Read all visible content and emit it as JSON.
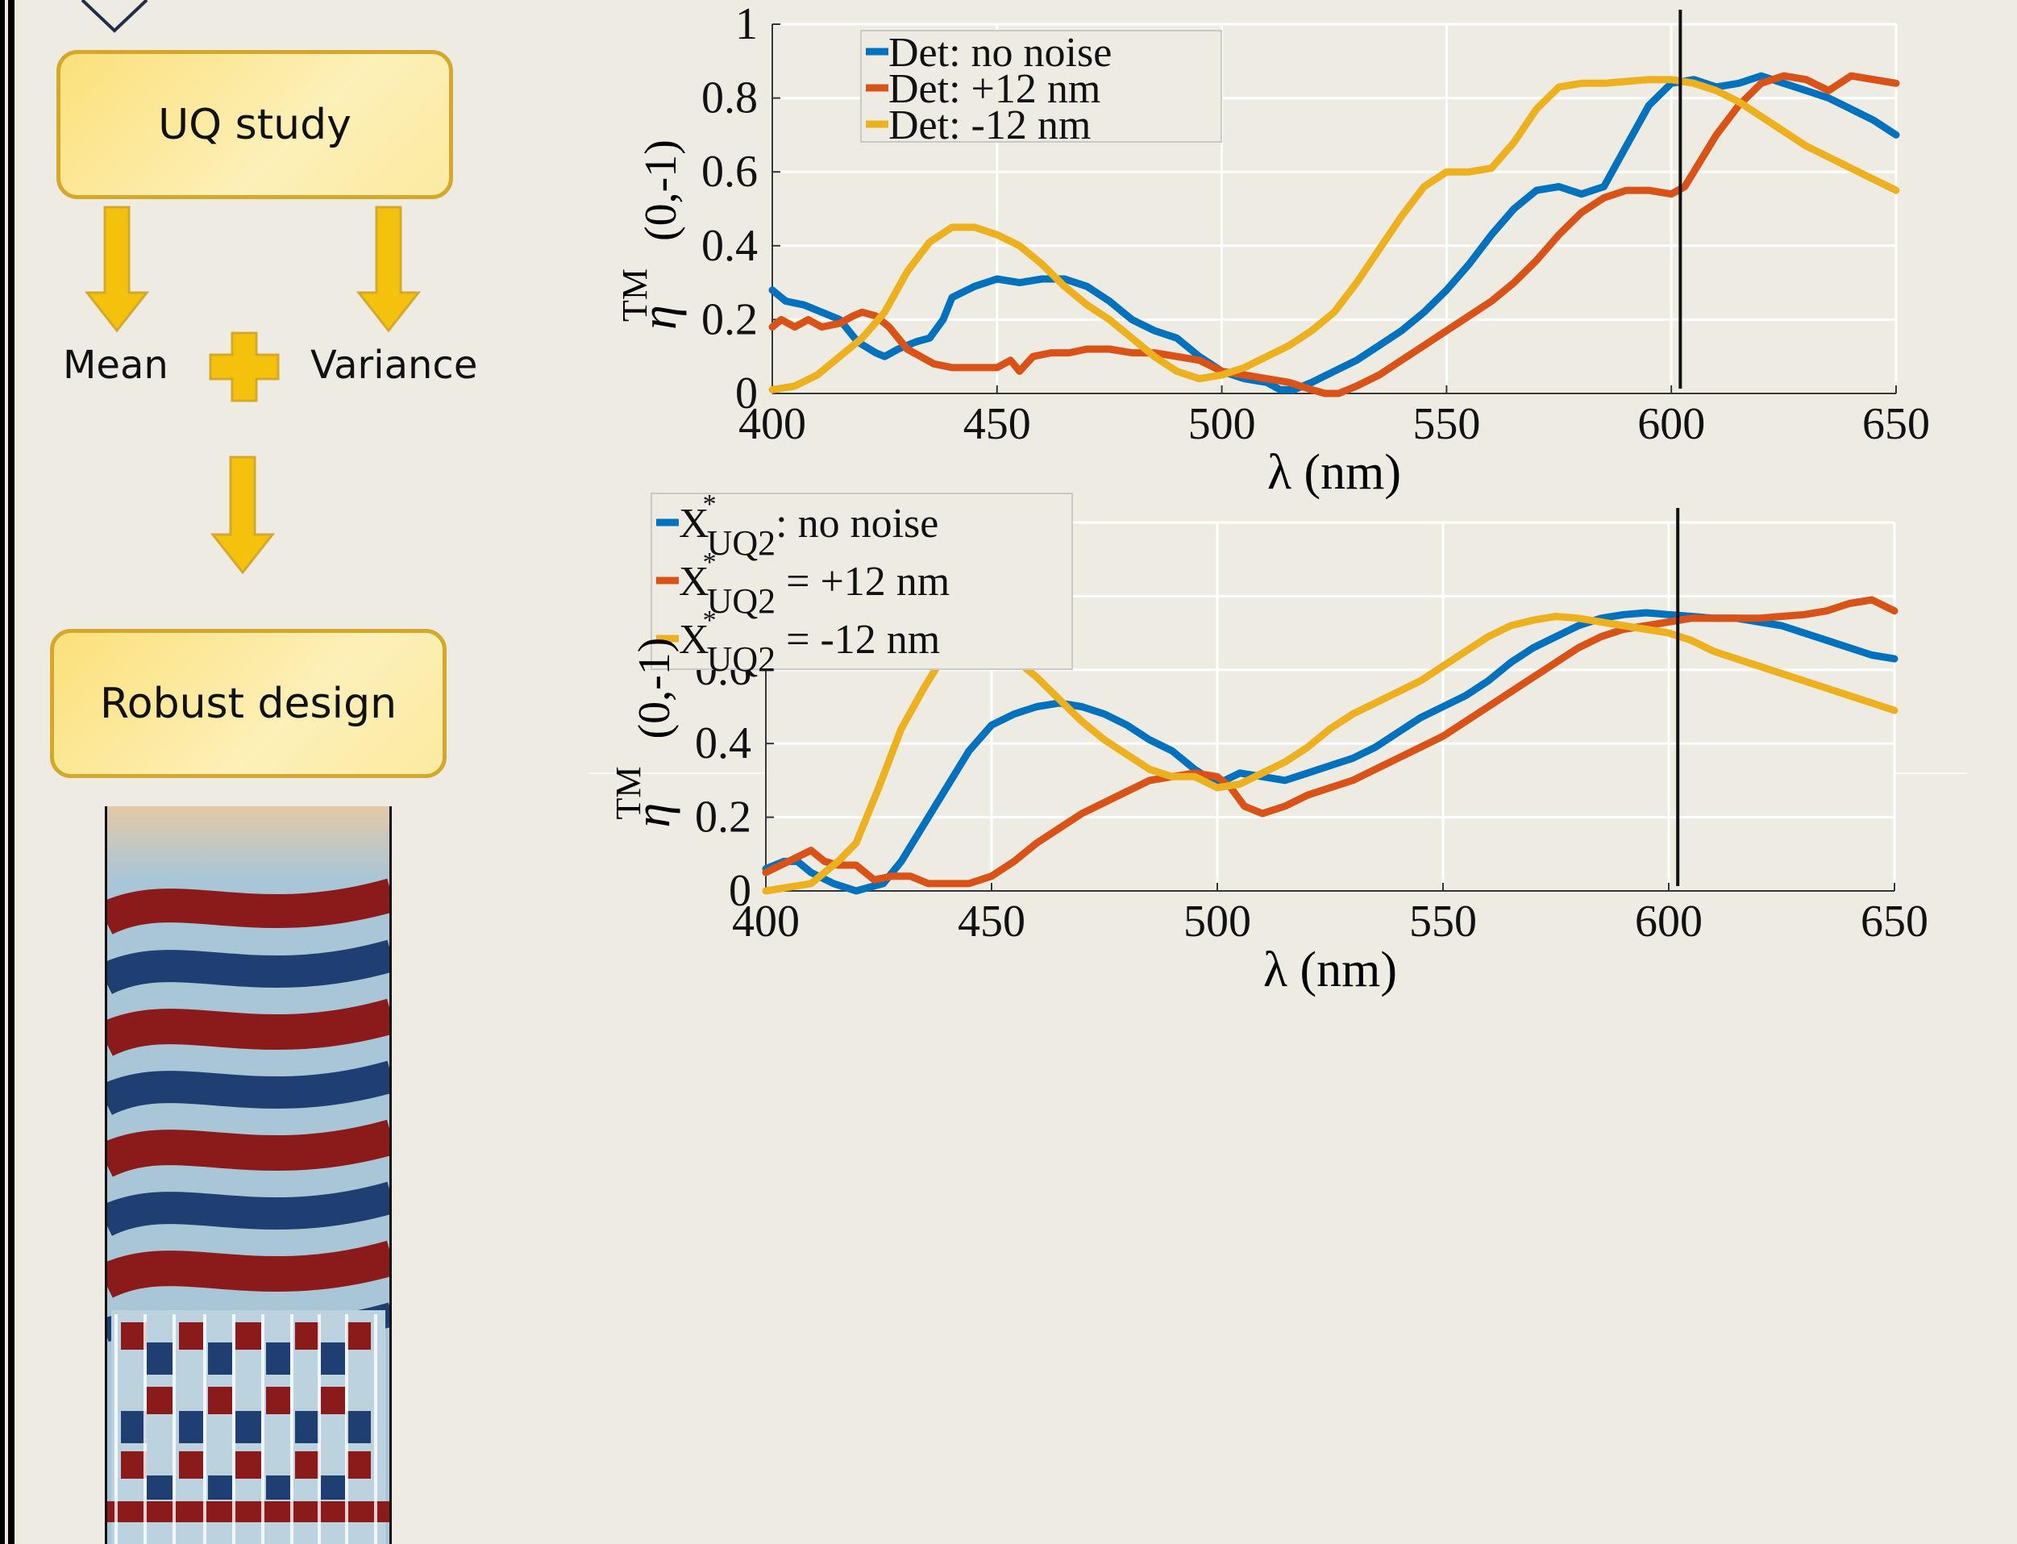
{
  "flow": {
    "uq_study": "UQ study",
    "mean": "Mean",
    "variance": "Variance",
    "robust_design": "Robust design"
  },
  "colors": {
    "blue": "#0072bd",
    "orange": "#d95319",
    "yellow": "#edb120",
    "box_fill": "#fde98c",
    "box_border": "#d4a82a",
    "arrow": "#f4c20d"
  },
  "chart_data": [
    {
      "type": "line",
      "title": "",
      "xlabel": "λ (nm)",
      "ylabel": "η TM (0,-1)",
      "ylabel_main": "η",
      "ylabel_sup": "TM",
      "ylabel_arg": "(0,-1)",
      "xlim": [
        400,
        650
      ],
      "ylim": [
        0,
        1
      ],
      "xticks": [
        "400",
        "450",
        "500",
        "550",
        "600",
        "650"
      ],
      "yticks": [
        "0",
        "0.2",
        "0.4",
        "0.6",
        "0.8",
        "1"
      ],
      "grid": true,
      "legend_position": "top-left",
      "vline": 602,
      "series": [
        {
          "name": "Det: no noise",
          "color": "#0072bd",
          "x": [
            400,
            403,
            407,
            411,
            415,
            419,
            423,
            425,
            428,
            432,
            435,
            438,
            440,
            445,
            450,
            455,
            460,
            465,
            470,
            475,
            480,
            485,
            490,
            495,
            500,
            505,
            510,
            513,
            516,
            520,
            525,
            530,
            535,
            540,
            545,
            550,
            555,
            560,
            565,
            570,
            575,
            580,
            585,
            590,
            595,
            600,
            605,
            610,
            615,
            620,
            625,
            630,
            635,
            640,
            645,
            650
          ],
          "y": [
            0.28,
            0.25,
            0.24,
            0.22,
            0.2,
            0.14,
            0.11,
            0.1,
            0.12,
            0.14,
            0.15,
            0.2,
            0.26,
            0.29,
            0.31,
            0.3,
            0.31,
            0.31,
            0.29,
            0.25,
            0.2,
            0.17,
            0.15,
            0.1,
            0.06,
            0.04,
            0.03,
            0.01,
            0.01,
            0.03,
            0.06,
            0.09,
            0.13,
            0.17,
            0.22,
            0.28,
            0.35,
            0.43,
            0.5,
            0.55,
            0.56,
            0.54,
            0.56,
            0.67,
            0.78,
            0.84,
            0.85,
            0.83,
            0.84,
            0.86,
            0.84,
            0.82,
            0.8,
            0.77,
            0.74,
            0.7
          ]
        },
        {
          "name": "Det: +12 nm",
          "color": "#d95319",
          "x": [
            400,
            402,
            405,
            408,
            411,
            415,
            418,
            420,
            423,
            426,
            430,
            433,
            436,
            440,
            445,
            450,
            453,
            455,
            458,
            462,
            466,
            470,
            475,
            480,
            485,
            490,
            495,
            500,
            505,
            510,
            515,
            520,
            523,
            526,
            530,
            535,
            540,
            545,
            550,
            555,
            560,
            565,
            570,
            575,
            580,
            585,
            590,
            595,
            600,
            603,
            606,
            610,
            615,
            620,
            625,
            630,
            635,
            640,
            645,
            650
          ],
          "y": [
            0.18,
            0.2,
            0.18,
            0.2,
            0.18,
            0.19,
            0.21,
            0.22,
            0.21,
            0.18,
            0.12,
            0.1,
            0.08,
            0.07,
            0.07,
            0.07,
            0.09,
            0.06,
            0.1,
            0.11,
            0.11,
            0.12,
            0.12,
            0.11,
            0.11,
            0.1,
            0.09,
            0.06,
            0.05,
            0.04,
            0.03,
            0.01,
            0.0,
            0.0,
            0.02,
            0.05,
            0.09,
            0.13,
            0.17,
            0.21,
            0.25,
            0.3,
            0.36,
            0.43,
            0.49,
            0.53,
            0.55,
            0.55,
            0.54,
            0.56,
            0.62,
            0.7,
            0.78,
            0.84,
            0.86,
            0.85,
            0.82,
            0.86,
            0.85,
            0.84
          ]
        },
        {
          "name": "Det: -12 nm",
          "color": "#edb120",
          "x": [
            400,
            405,
            410,
            415,
            420,
            425,
            430,
            435,
            440,
            445,
            450,
            455,
            460,
            465,
            470,
            475,
            480,
            485,
            490,
            495,
            500,
            505,
            510,
            515,
            520,
            525,
            530,
            535,
            540,
            545,
            550,
            555,
            560,
            565,
            570,
            575,
            580,
            585,
            590,
            595,
            600,
            605,
            610,
            615,
            620,
            625,
            630,
            635,
            640,
            645,
            650
          ],
          "y": [
            0.01,
            0.02,
            0.05,
            0.1,
            0.15,
            0.22,
            0.33,
            0.41,
            0.45,
            0.45,
            0.43,
            0.4,
            0.35,
            0.29,
            0.24,
            0.2,
            0.15,
            0.1,
            0.06,
            0.04,
            0.05,
            0.07,
            0.1,
            0.13,
            0.17,
            0.22,
            0.3,
            0.39,
            0.48,
            0.56,
            0.6,
            0.6,
            0.61,
            0.68,
            0.77,
            0.83,
            0.84,
            0.84,
            0.845,
            0.85,
            0.85,
            0.84,
            0.82,
            0.79,
            0.75,
            0.71,
            0.67,
            0.64,
            0.61,
            0.58,
            0.55
          ]
        }
      ]
    },
    {
      "type": "line",
      "title": "",
      "xlabel": "λ (nm)",
      "ylabel": "η TM (0,-1)",
      "ylabel_main": "η",
      "ylabel_sup": "TM",
      "ylabel_arg": "(0,-1)",
      "xlim": [
        400,
        650
      ],
      "ylim": [
        0,
        1
      ],
      "xticks": [
        "400",
        "450",
        "500",
        "550",
        "600",
        "650"
      ],
      "yticks": [
        "0",
        "0.2",
        "0.4",
        "0.6",
        "0.8",
        "1"
      ],
      "grid": true,
      "legend_position": "top-center",
      "vline": 602,
      "series": [
        {
          "name": "X*UQ2: no noise",
          "legend_prefix": "X",
          "legend_sup": "*",
          "legend_sub": "UQ2",
          "legend_suffix": ": no noise",
          "color": "#0072bd",
          "x": [
            400,
            404,
            407,
            410,
            415,
            420,
            423,
            426,
            430,
            435,
            440,
            445,
            450,
            455,
            460,
            465,
            470,
            475,
            480,
            485,
            490,
            495,
            500,
            505,
            510,
            515,
            520,
            525,
            530,
            535,
            540,
            545,
            550,
            555,
            560,
            565,
            570,
            575,
            580,
            585,
            590,
            595,
            600,
            605,
            610,
            615,
            620,
            625,
            630,
            635,
            640,
            645,
            650
          ],
          "y": [
            0.06,
            0.08,
            0.08,
            0.05,
            0.02,
            0.0,
            0.01,
            0.02,
            0.08,
            0.18,
            0.28,
            0.38,
            0.45,
            0.48,
            0.5,
            0.51,
            0.5,
            0.48,
            0.45,
            0.41,
            0.38,
            0.33,
            0.29,
            0.32,
            0.31,
            0.3,
            0.32,
            0.34,
            0.36,
            0.39,
            0.43,
            0.47,
            0.5,
            0.53,
            0.57,
            0.62,
            0.66,
            0.69,
            0.72,
            0.74,
            0.75,
            0.755,
            0.75,
            0.745,
            0.74,
            0.74,
            0.73,
            0.72,
            0.7,
            0.68,
            0.66,
            0.64,
            0.63
          ]
        },
        {
          "name": "X*UQ2 = +12 nm",
          "legend_prefix": "X",
          "legend_sup": "*",
          "legend_sub": "UQ2",
          "legend_suffix": " = +12 nm",
          "color": "#d95319",
          "x": [
            400,
            405,
            410,
            413,
            416,
            420,
            424,
            428,
            432,
            436,
            440,
            445,
            450,
            455,
            460,
            465,
            470,
            475,
            480,
            485,
            490,
            495,
            500,
            503,
            506,
            510,
            515,
            520,
            525,
            530,
            535,
            540,
            545,
            550,
            555,
            560,
            565,
            570,
            575,
            580,
            585,
            590,
            595,
            600,
            605,
            610,
            615,
            620,
            625,
            630,
            635,
            640,
            645,
            650
          ],
          "y": [
            0.05,
            0.08,
            0.11,
            0.08,
            0.07,
            0.07,
            0.03,
            0.04,
            0.04,
            0.02,
            0.02,
            0.02,
            0.04,
            0.08,
            0.13,
            0.17,
            0.21,
            0.24,
            0.27,
            0.3,
            0.31,
            0.32,
            0.31,
            0.28,
            0.23,
            0.21,
            0.23,
            0.26,
            0.28,
            0.3,
            0.33,
            0.36,
            0.39,
            0.42,
            0.46,
            0.5,
            0.54,
            0.58,
            0.62,
            0.66,
            0.69,
            0.71,
            0.72,
            0.73,
            0.74,
            0.74,
            0.74,
            0.74,
            0.745,
            0.75,
            0.76,
            0.78,
            0.79,
            0.76
          ]
        },
        {
          "name": "X*UQ2 = -12 nm",
          "legend_prefix": "X",
          "legend_sup": "*",
          "legend_sub": "UQ2",
          "legend_suffix": " = -12 nm",
          "color": "#edb120",
          "x": [
            400,
            405,
            410,
            413,
            416,
            420,
            425,
            430,
            435,
            440,
            445,
            450,
            455,
            460,
            465,
            470,
            475,
            480,
            485,
            490,
            495,
            500,
            505,
            510,
            515,
            520,
            525,
            530,
            535,
            540,
            545,
            550,
            555,
            560,
            565,
            570,
            575,
            580,
            585,
            590,
            595,
            600,
            605,
            610,
            615,
            620,
            625,
            630,
            635,
            640,
            645,
            650
          ],
          "y": [
            0.0,
            0.01,
            0.02,
            0.05,
            0.08,
            0.13,
            0.28,
            0.44,
            0.55,
            0.65,
            0.68,
            0.67,
            0.63,
            0.58,
            0.52,
            0.46,
            0.41,
            0.37,
            0.33,
            0.31,
            0.31,
            0.28,
            0.29,
            0.32,
            0.35,
            0.39,
            0.44,
            0.48,
            0.51,
            0.54,
            0.57,
            0.61,
            0.65,
            0.69,
            0.72,
            0.735,
            0.745,
            0.74,
            0.73,
            0.72,
            0.71,
            0.7,
            0.68,
            0.65,
            0.63,
            0.61,
            0.59,
            0.57,
            0.55,
            0.53,
            0.51,
            0.49
          ]
        }
      ]
    }
  ]
}
